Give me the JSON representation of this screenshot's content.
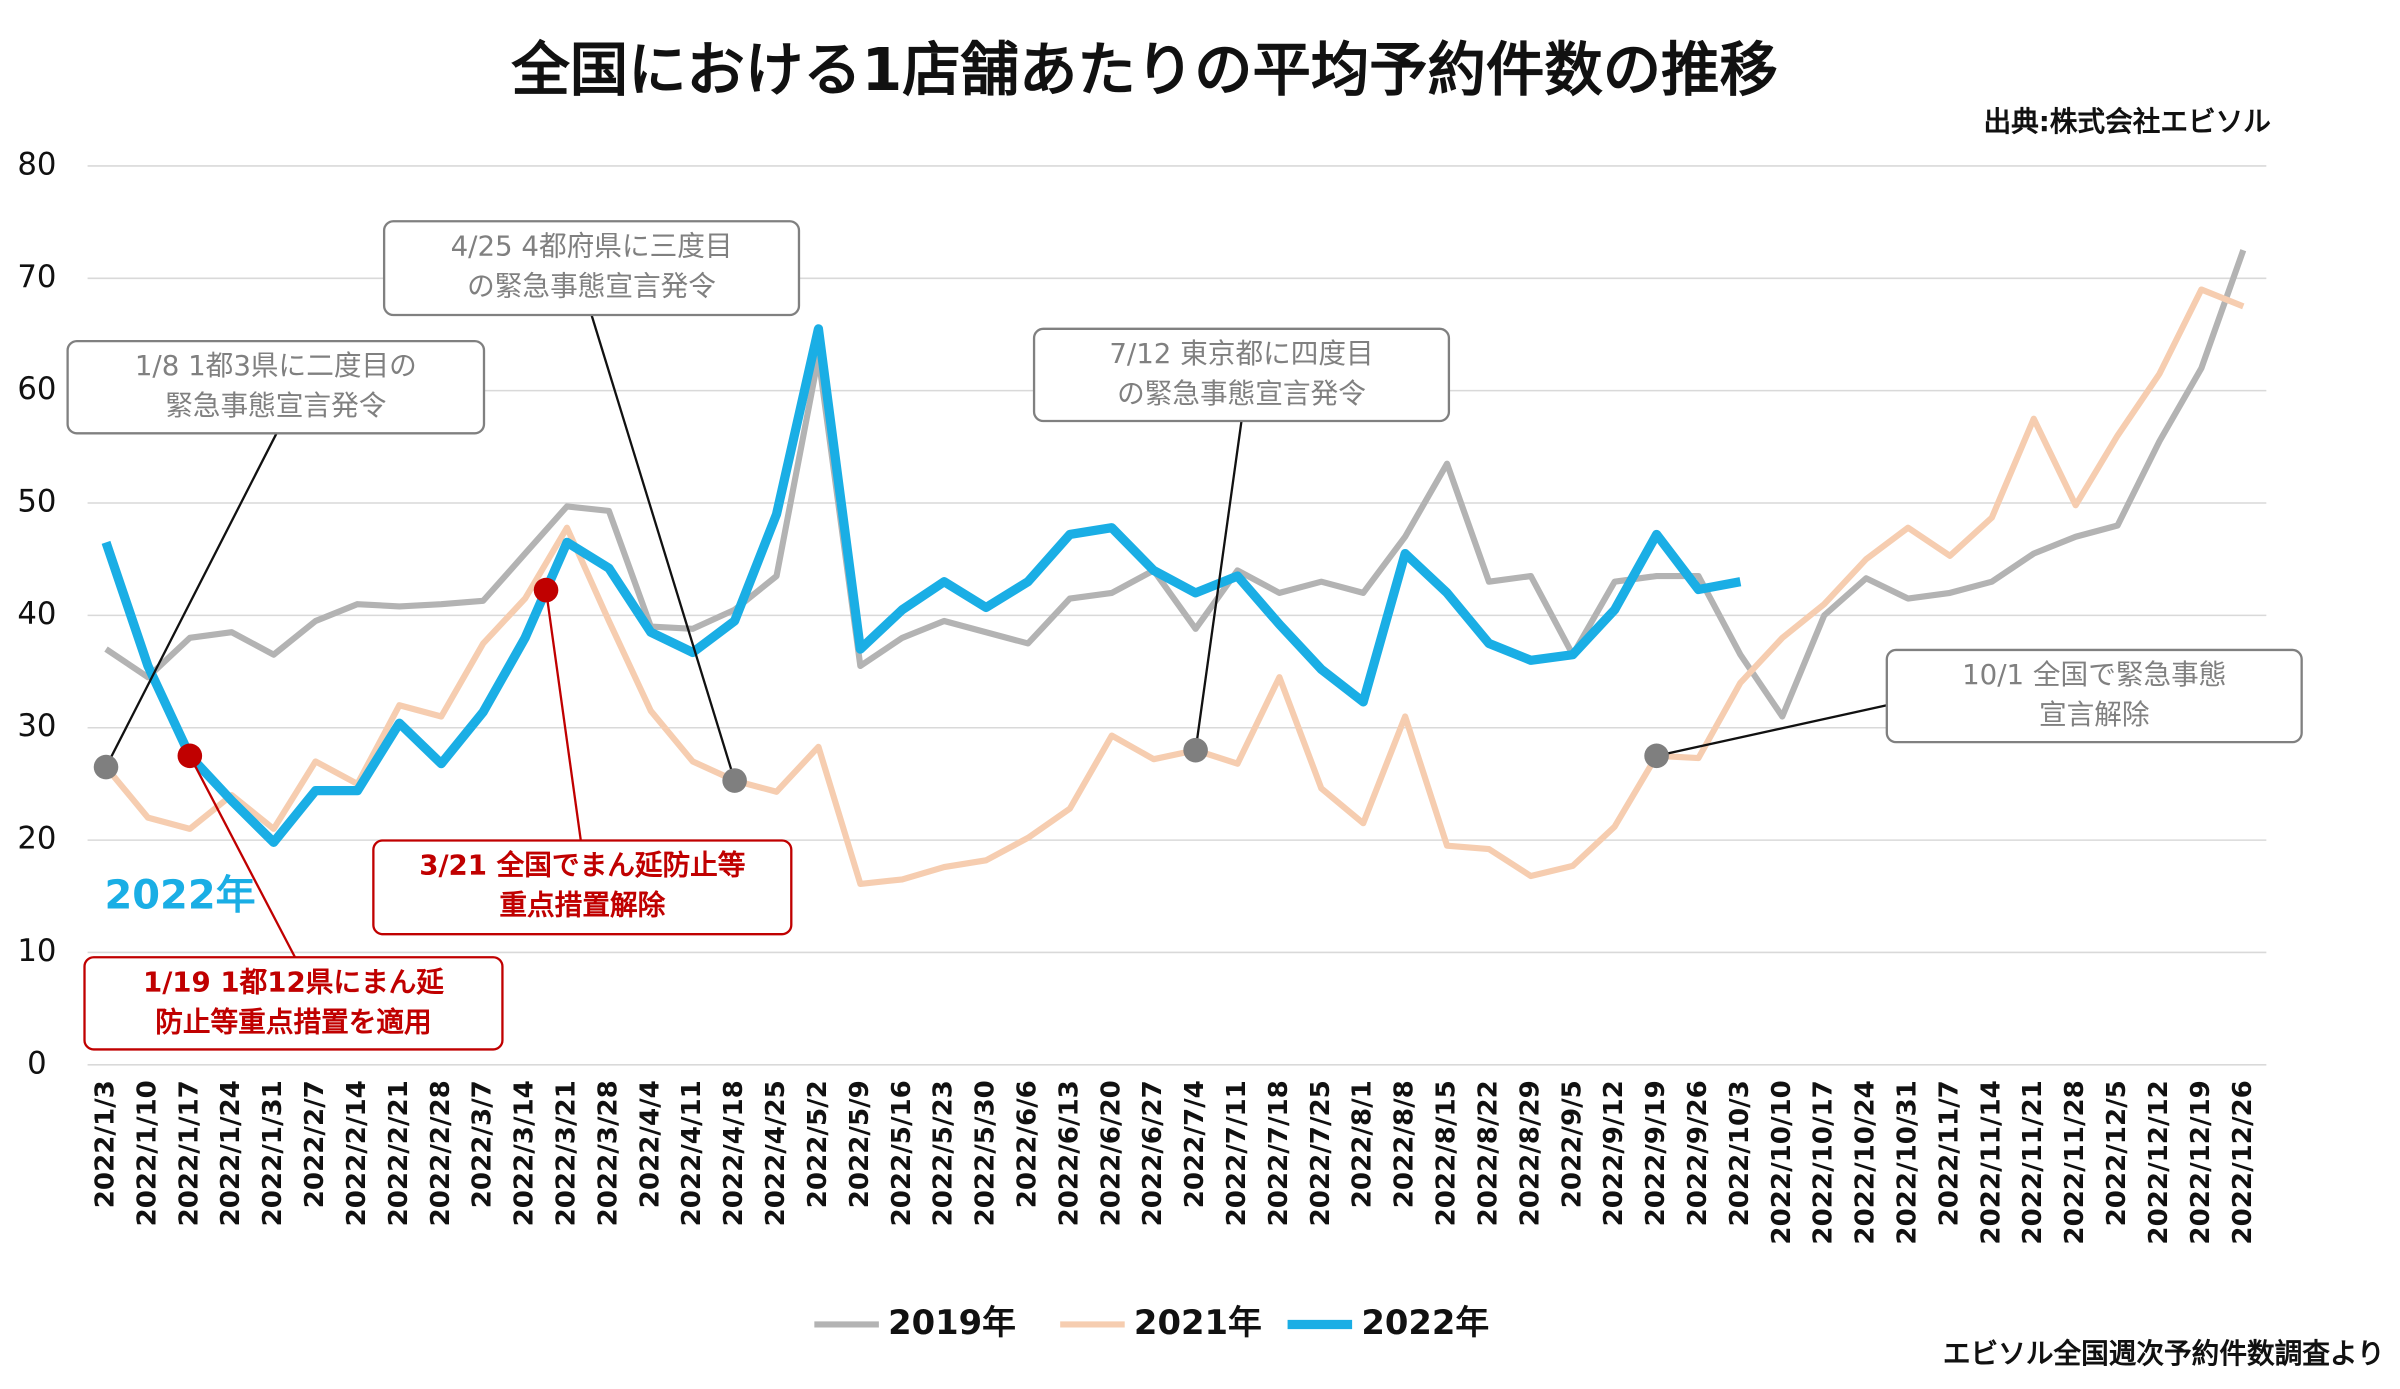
{
  "chart_data": {
    "type": "line",
    "title": "全国における1店舗あたりの平均予約件数の推移",
    "source": "出典:株式会社エビソル",
    "footnote": "エビソル全国週次予約件数調査より",
    "series_label": "2022年",
    "categories": [
      "2022/1/3",
      "2022/1/10",
      "2022/1/17",
      "2022/1/24",
      "2022/1/31",
      "2022/2/7",
      "2022/2/14",
      "2022/2/21",
      "2022/2/28",
      "2022/3/7",
      "2022/3/14",
      "2022/3/21",
      "2022/3/28",
      "2022/4/4",
      "2022/4/11",
      "2022/4/18",
      "2022/4/25",
      "2022/5/2",
      "2022/5/9",
      "2022/5/16",
      "2022/5/23",
      "2022/5/30",
      "2022/6/6",
      "2022/6/13",
      "2022/6/20",
      "2022/6/27",
      "2022/7/4",
      "2022/7/11",
      "2022/7/18",
      "2022/7/25",
      "2022/8/1",
      "2022/8/8",
      "2022/8/15",
      "2022/8/22",
      "2022/8/29",
      "2022/9/5",
      "2022/9/12",
      "2022/9/19",
      "2022/9/26",
      "2022/10/3",
      "2022/10/10",
      "2022/10/17",
      "2022/10/24",
      "2022/10/31",
      "2022/11/7",
      "2022/11/14",
      "2022/11/21",
      "2022/11/28",
      "2022/12/5",
      "2022/12/12",
      "2022/12/19",
      "2022/12/26"
    ],
    "series": [
      {
        "name": "2019年",
        "color": "#b3b3b3",
        "values": [
          37,
          34.5,
          38,
          38.5,
          36.5,
          39.5,
          41,
          40.8,
          41,
          41.3,
          45.5,
          49.7,
          49.3,
          39,
          38.8,
          40.5,
          43.5,
          63,
          35.5,
          38,
          39.5,
          38.5,
          37.5,
          41.5,
          42,
          44,
          38.8,
          44,
          42,
          43,
          42,
          47,
          53.5,
          43,
          43.5,
          36.5,
          43,
          43.5,
          43.5,
          36.5,
          31,
          40,
          43.3,
          41.5,
          42,
          43,
          45.5,
          47,
          48,
          55.5,
          62,
          72.5
        ]
      },
      {
        "name": "2021年",
        "color": "#f6cdb0",
        "values": [
          26.5,
          22,
          21,
          24,
          21,
          27,
          25,
          32,
          31,
          37.5,
          41.5,
          47.8,
          39.5,
          31.5,
          27,
          25.3,
          24.3,
          28.3,
          16.1,
          16.5,
          17.6,
          18.2,
          20.2,
          22.8,
          29.3,
          27.2,
          28,
          26.8,
          34.5,
          24.6,
          21.5,
          31,
          19.5,
          19.2,
          16.8,
          17.7,
          21.2,
          27.5,
          27.3,
          34,
          38,
          41,
          45,
          47.8,
          45.3,
          48.7,
          57.5,
          49.8,
          56,
          61.5,
          69,
          67.5
        ]
      },
      {
        "name": "2022年",
        "color": "#1aaee5",
        "values": [
          46.5,
          35.5,
          27.5,
          23.5,
          19.8,
          24.4,
          24.4,
          30.4,
          26.8,
          31.4,
          38,
          46.5,
          44.2,
          38.5,
          36.7,
          39.5,
          49,
          65.5,
          37,
          40.5,
          43,
          40.7,
          43,
          47.2,
          47.8,
          44,
          42,
          43.5,
          39.2,
          35.2,
          32.3,
          45.5,
          42,
          37.5,
          36,
          36.5,
          40.5,
          47.2,
          42.3,
          43,
          null,
          null,
          null,
          null,
          null,
          null,
          null,
          null,
          null,
          null,
          null,
          null
        ]
      }
    ],
    "ylim": [
      0,
      80
    ],
    "yticks": [
      0,
      10,
      20,
      30,
      40,
      50,
      60,
      70,
      80
    ],
    "grid": true,
    "legend": "bottom",
    "annotations": [
      {
        "lines": [
          "1/8  1都3県に二度目の",
          "緊急事態宣言発令"
        ],
        "color": "#808080"
      },
      {
        "lines": [
          "4/25  4都府県に三度目",
          "の緊急事態宣言発令"
        ],
        "color": "#808080"
      },
      {
        "lines": [
          "7/12  東京都に四度目",
          "の緊急事態宣言発令"
        ],
        "color": "#808080"
      },
      {
        "lines": [
          "10/1  全国で緊急事態",
          "宣言解除"
        ],
        "color": "#808080"
      },
      {
        "lines": [
          "3/21  全国でまん延防止等",
          "重点措置解除"
        ],
        "color": "#c00000"
      },
      {
        "lines": [
          "1/19  1都12県にまん延",
          "防止等重点措置を適用"
        ],
        "color": "#c00000"
      }
    ]
  }
}
